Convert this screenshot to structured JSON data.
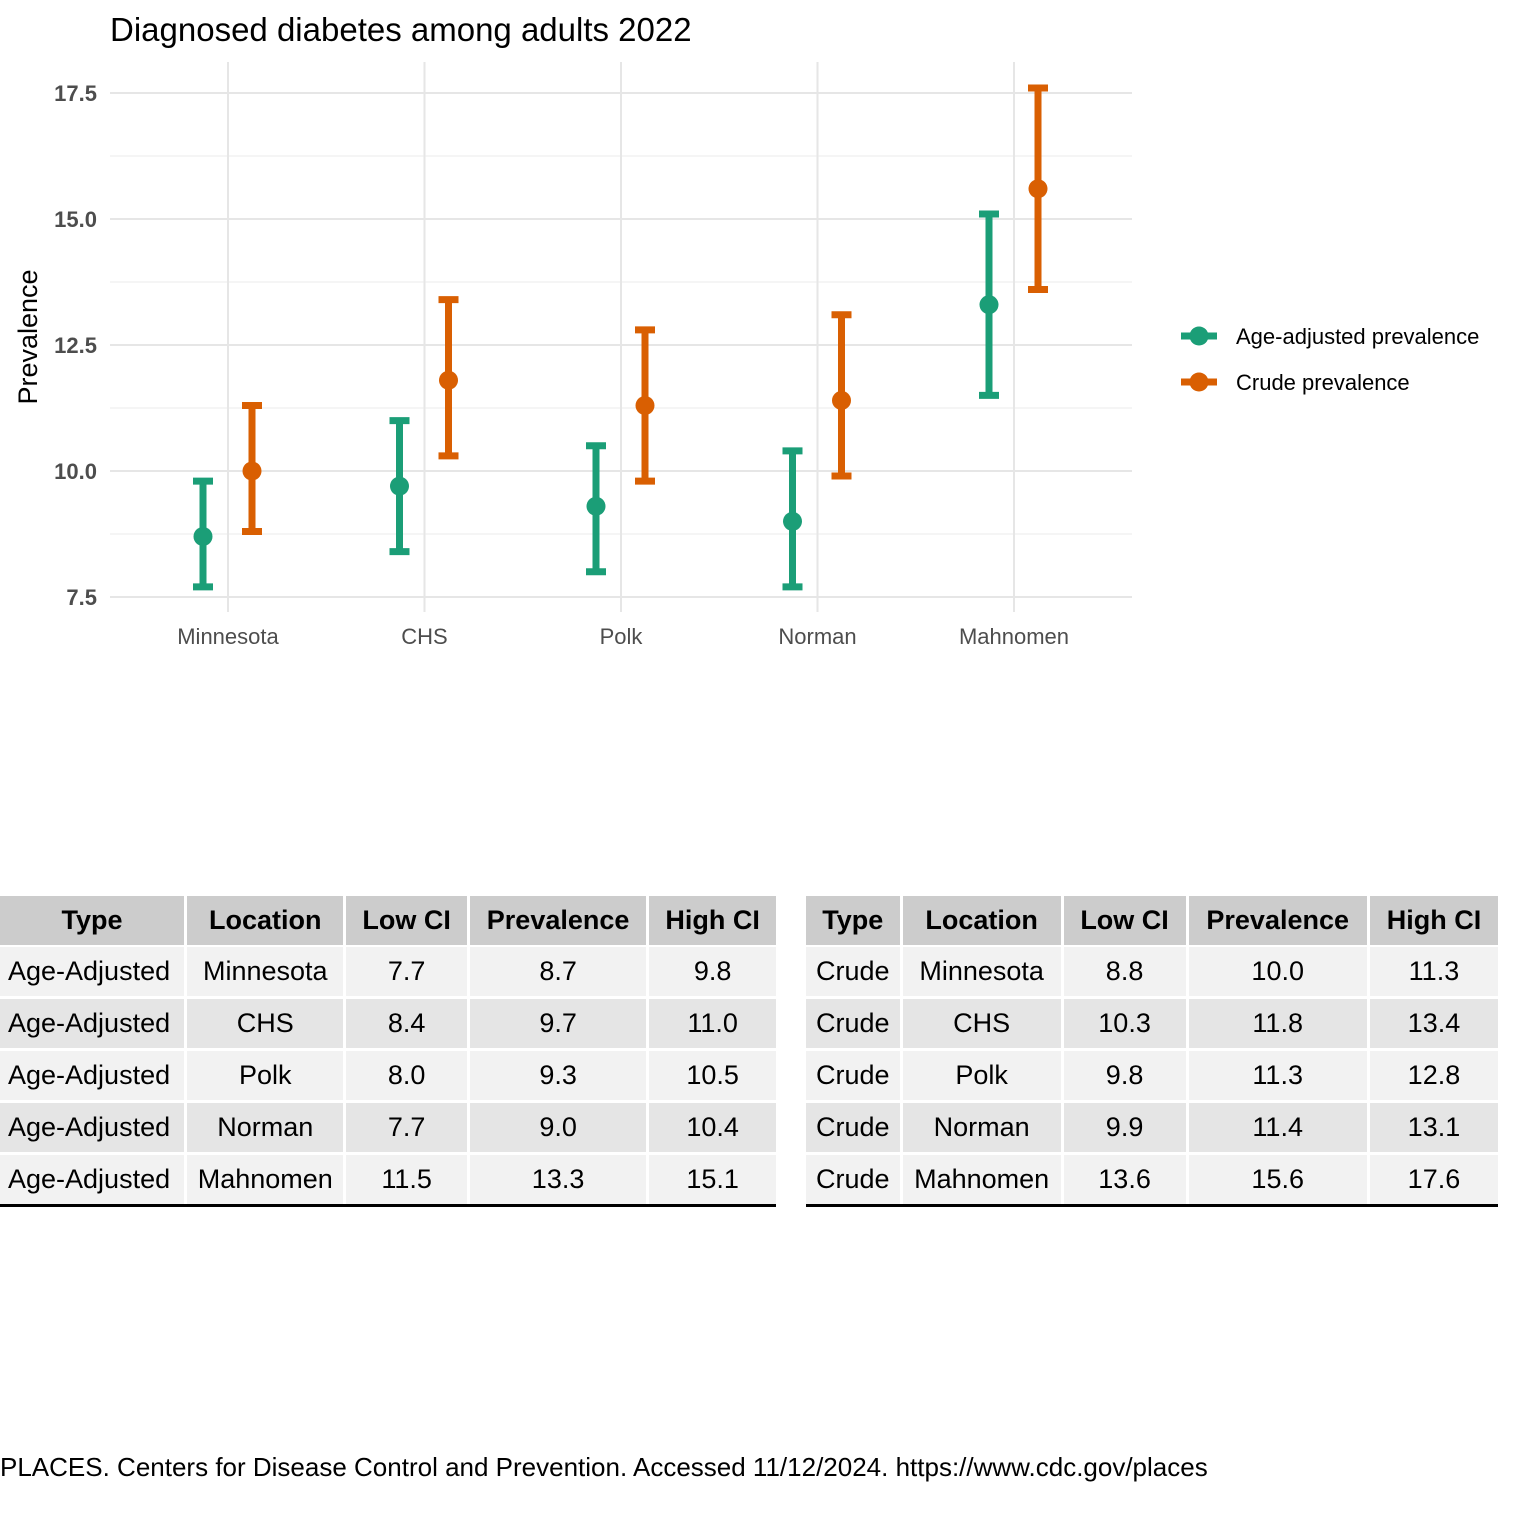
{
  "chart_data": {
    "type": "errorbar",
    "title": "Diagnosed diabetes among adults 2022",
    "xlabel": "",
    "ylabel": "Prevalence",
    "categories": [
      "Minnesota",
      "CHS",
      "Polk",
      "Norman",
      "Mahnomen"
    ],
    "ylim": [
      7.5,
      17.6
    ],
    "yticks": [
      "7.5",
      "10.0",
      "12.5",
      "15.0",
      "17.5"
    ],
    "grid": true,
    "legend_position": "right",
    "series": [
      {
        "name": "Age-adjusted prevalence",
        "color": "#1b9e77",
        "values": [
          8.7,
          9.7,
          9.3,
          9.0,
          13.3
        ],
        "low": [
          7.7,
          8.4,
          8.0,
          7.7,
          11.5
        ],
        "high": [
          9.8,
          11.0,
          10.5,
          10.4,
          15.1
        ]
      },
      {
        "name": "Crude prevalence",
        "color": "#d95f02",
        "values": [
          10.0,
          11.8,
          11.3,
          11.4,
          15.6
        ],
        "low": [
          8.8,
          10.3,
          9.8,
          9.9,
          13.6
        ],
        "high": [
          11.3,
          13.4,
          12.8,
          13.1,
          17.6
        ]
      }
    ]
  },
  "tables": {
    "headers": [
      "Type",
      "Location",
      "Low CI",
      "Prevalence",
      "High CI"
    ],
    "left_rows": [
      [
        "Age-Adjusted",
        "Minnesota",
        "7.7",
        "8.7",
        "9.8"
      ],
      [
        "Age-Adjusted",
        "CHS",
        "8.4",
        "9.7",
        "11.0"
      ],
      [
        "Age-Adjusted",
        "Polk",
        "8.0",
        "9.3",
        "10.5"
      ],
      [
        "Age-Adjusted",
        "Norman",
        "7.7",
        "9.0",
        "10.4"
      ],
      [
        "Age-Adjusted",
        "Mahnomen",
        "11.5",
        "13.3",
        "15.1"
      ]
    ],
    "right_rows": [
      [
        "Crude",
        "Minnesota",
        "8.8",
        "10.0",
        "11.3"
      ],
      [
        "Crude",
        "CHS",
        "10.3",
        "11.8",
        "13.4"
      ],
      [
        "Crude",
        "Polk",
        "9.8",
        "11.3",
        "12.8"
      ],
      [
        "Crude",
        "Norman",
        "9.9",
        "11.4",
        "13.1"
      ],
      [
        "Crude",
        "Mahnomen",
        "13.6",
        "15.6",
        "17.6"
      ]
    ]
  },
  "caption": "PLACES. Centers for Disease Control and Prevention. Accessed 11/12/2024. https://www.cdc.gov/places"
}
